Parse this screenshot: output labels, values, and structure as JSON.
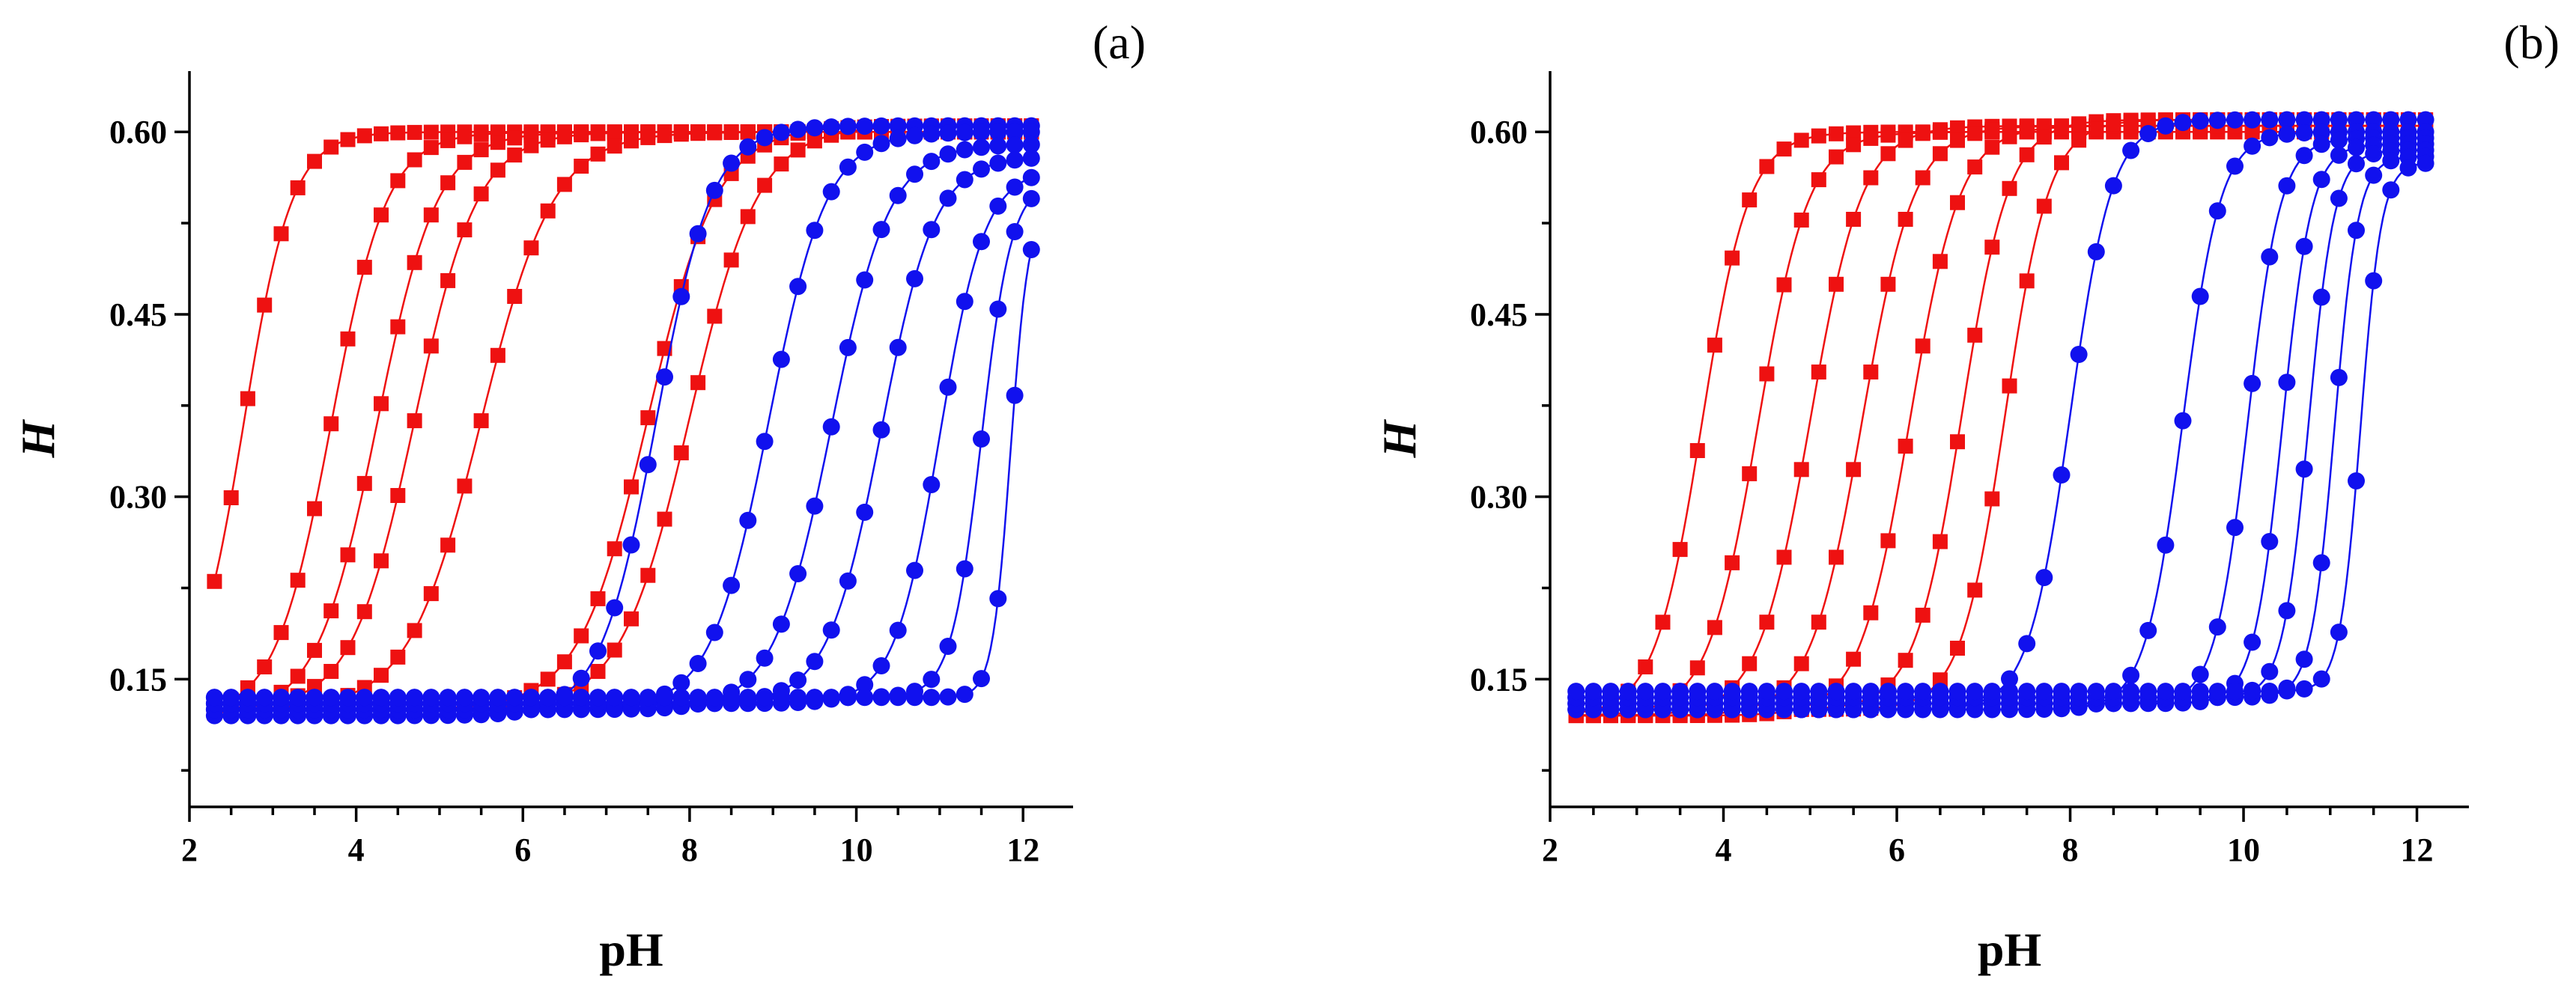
{
  "chart_data": [
    {
      "type": "scatter",
      "panel_label": "(a)",
      "xlabel": "pH",
      "ylabel": "H",
      "xlim": [
        2,
        12.6
      ],
      "ylim": [
        0.045,
        0.65
      ],
      "xticks": [
        "2",
        "4",
        "6",
        "8",
        "10",
        "12"
      ],
      "yticks": [
        "0.15",
        "0.30",
        "0.45",
        "0.60"
      ],
      "x": [
        2.3,
        2.5,
        2.7,
        2.9,
        3.1,
        3.3,
        3.5,
        3.7,
        3.9,
        4.1,
        4.3,
        4.5,
        4.7,
        4.9,
        5.1,
        5.3,
        5.5,
        5.7,
        5.9,
        6.1,
        6.3,
        6.5,
        6.7,
        6.9,
        7.1,
        7.3,
        7.5,
        7.7,
        7.9,
        8.1,
        8.3,
        8.5,
        8.7,
        8.9,
        9.1,
        9.3,
        9.5,
        9.7,
        9.9,
        10.1,
        10.3,
        10.5,
        10.7,
        10.9,
        11.1,
        11.3,
        11.5,
        11.7,
        11.9,
        12.1
      ],
      "series": [
        {
          "name": "red-1",
          "color": "#ee1111",
          "marker": "square",
          "bottom": 0.12,
          "top": 0.6,
          "pk": 2.65,
          "n": 1.5
        },
        {
          "name": "red-2",
          "color": "#ee1111",
          "marker": "square",
          "bottom": 0.12,
          "top": 0.6,
          "pk": 3.7,
          "n": 1.3
        },
        {
          "name": "red-3",
          "color": "#ee1111",
          "marker": "square",
          "bottom": 0.12,
          "top": 0.6,
          "pk": 4.25,
          "n": 1.2
        },
        {
          "name": "red-4",
          "color": "#ee1111",
          "marker": "square",
          "bottom": 0.125,
          "top": 0.6,
          "pk": 4.7,
          "n": 1.15
        },
        {
          "name": "red-5",
          "color": "#ee1111",
          "marker": "square",
          "bottom": 0.125,
          "top": 0.6,
          "pk": 5.5,
          "n": 1.0
        },
        {
          "name": "red-6",
          "color": "#ee1111",
          "marker": "square",
          "bottom": 0.125,
          "top": 0.605,
          "pk": 7.5,
          "n": 1.05
        },
        {
          "name": "red-7",
          "color": "#ee1111",
          "marker": "square",
          "bottom": 0.125,
          "top": 0.605,
          "pk": 8.0,
          "n": 1.05
        },
        {
          "name": "blue-1",
          "color": "#1111ee",
          "marker": "circle",
          "bottom": 0.12,
          "top": 0.605,
          "pk": 7.6,
          "n": 1.3
        },
        {
          "name": "blue-2",
          "color": "#1111ee",
          "marker": "circle",
          "bottom": 0.125,
          "top": 0.6,
          "pk": 8.95,
          "n": 1.25
        },
        {
          "name": "blue-3",
          "color": "#1111ee",
          "marker": "circle",
          "bottom": 0.125,
          "top": 0.59,
          "pk": 9.7,
          "n": 1.25
        },
        {
          "name": "blue-4",
          "color": "#1111ee",
          "marker": "circle",
          "bottom": 0.13,
          "top": 0.58,
          "pk": 10.3,
          "n": 1.35
        },
        {
          "name": "blue-5",
          "color": "#1111ee",
          "marker": "circle",
          "bottom": 0.13,
          "top": 0.57,
          "pk": 11.0,
          "n": 1.6
        },
        {
          "name": "blue-6",
          "color": "#1111ee",
          "marker": "circle",
          "bottom": 0.135,
          "top": 0.56,
          "pk": 11.5,
          "n": 2.4
        },
        {
          "name": "blue-7",
          "color": "#1111ee",
          "marker": "circle",
          "bottom": 0.135,
          "top": 0.54,
          "pk": 11.85,
          "n": 4.0
        }
      ]
    },
    {
      "type": "scatter",
      "panel_label": "(b)",
      "xlabel": "pH",
      "ylabel": "H",
      "xlim": [
        2,
        12.6
      ],
      "ylim": [
        0.045,
        0.65
      ],
      "xticks": [
        "2",
        "4",
        "6",
        "8",
        "10",
        "12"
      ],
      "yticks": [
        "0.15",
        "0.30",
        "0.45",
        "0.60"
      ],
      "x": [
        2.3,
        2.5,
        2.7,
        2.9,
        3.1,
        3.3,
        3.5,
        3.7,
        3.9,
        4.1,
        4.3,
        4.5,
        4.7,
        4.9,
        5.1,
        5.3,
        5.5,
        5.7,
        5.9,
        6.1,
        6.3,
        6.5,
        6.7,
        6.9,
        7.1,
        7.3,
        7.5,
        7.7,
        7.9,
        8.1,
        8.3,
        8.5,
        8.7,
        8.9,
        9.1,
        9.3,
        9.5,
        9.7,
        9.9,
        10.1,
        10.3,
        10.5,
        10.7,
        10.9,
        11.1,
        11.3,
        11.5,
        11.7,
        11.9,
        12.1
      ],
      "series": [
        {
          "name": "red-1",
          "color": "#ee1111",
          "marker": "square",
          "bottom": 0.12,
          "top": 0.6,
          "pk": 3.75,
          "n": 1.6
        },
        {
          "name": "red-2",
          "color": "#ee1111",
          "marker": "square",
          "bottom": 0.12,
          "top": 0.6,
          "pk": 4.4,
          "n": 1.5
        },
        {
          "name": "red-3",
          "color": "#ee1111",
          "marker": "square",
          "bottom": 0.12,
          "top": 0.605,
          "pk": 5.0,
          "n": 1.45
        },
        {
          "name": "red-4",
          "color": "#ee1111",
          "marker": "square",
          "bottom": 0.12,
          "top": 0.605,
          "pk": 5.6,
          "n": 1.45
        },
        {
          "name": "red-5",
          "color": "#ee1111",
          "marker": "square",
          "bottom": 0.12,
          "top": 0.605,
          "pk": 6.15,
          "n": 1.5
        },
        {
          "name": "red-6",
          "color": "#ee1111",
          "marker": "square",
          "bottom": 0.125,
          "top": 0.61,
          "pk": 6.75,
          "n": 1.6
        },
        {
          "name": "red-7",
          "color": "#ee1111",
          "marker": "square",
          "bottom": 0.125,
          "top": 0.61,
          "pk": 7.25,
          "n": 1.7
        },
        {
          "name": "blue-1",
          "color": "#1111ee",
          "marker": "circle",
          "bottom": 0.125,
          "top": 0.61,
          "pk": 8.0,
          "n": 1.8
        },
        {
          "name": "blue-2",
          "color": "#1111ee",
          "marker": "circle",
          "bottom": 0.125,
          "top": 0.6,
          "pk": 9.3,
          "n": 2.0
        },
        {
          "name": "blue-3",
          "color": "#1111ee",
          "marker": "circle",
          "bottom": 0.13,
          "top": 0.595,
          "pk": 10.05,
          "n": 2.3
        },
        {
          "name": "blue-4",
          "color": "#1111ee",
          "marker": "circle",
          "bottom": 0.13,
          "top": 0.59,
          "pk": 10.45,
          "n": 2.6
        },
        {
          "name": "blue-5",
          "color": "#1111ee",
          "marker": "circle",
          "bottom": 0.135,
          "top": 0.585,
          "pk": 10.75,
          "n": 2.9
        },
        {
          "name": "blue-6",
          "color": "#1111ee",
          "marker": "circle",
          "bottom": 0.135,
          "top": 0.58,
          "pk": 11.05,
          "n": 3.2
        },
        {
          "name": "blue-7",
          "color": "#1111ee",
          "marker": "circle",
          "bottom": 0.14,
          "top": 0.575,
          "pk": 11.35,
          "n": 3.6
        }
      ]
    }
  ]
}
